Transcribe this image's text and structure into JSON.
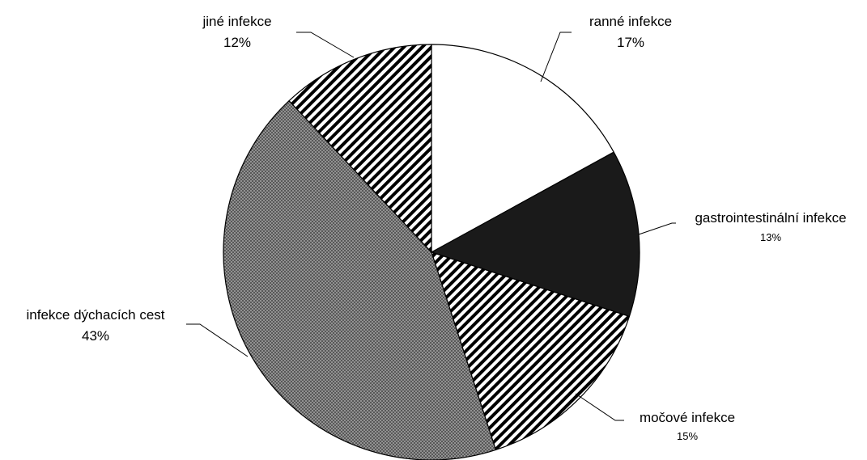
{
  "chart_data": {
    "type": "pie",
    "title": "",
    "slices": [
      {
        "label": "ranné infekce",
        "value": 17,
        "value_label": "17%",
        "pattern": "white"
      },
      {
        "label": "gastrointestinální infekce",
        "value": 13,
        "value_label": "13%",
        "pattern": "black"
      },
      {
        "label": "močové infekce",
        "value": 15,
        "value_label": "15%",
        "pattern": "diagonal-stripes"
      },
      {
        "label": "infekce dýchacích cest",
        "value": 43,
        "value_label": "43%",
        "pattern": "fine-crosshatch-gray"
      },
      {
        "label": "jiné infekce",
        "value": 12,
        "value_label": "12%",
        "pattern": "diagonal-stripes"
      }
    ],
    "start_angle": "12 o'clock",
    "direction": "clockwise",
    "legend": "none",
    "labels": "outside with leader lines",
    "colors": {
      "outline": "#000000",
      "white_fill": "#ffffff",
      "black_fill": "#1a1a1a",
      "stripe": "#000000",
      "gray_base": "#9a9a9a",
      "gray_hatch": "#4a4a4a"
    }
  }
}
